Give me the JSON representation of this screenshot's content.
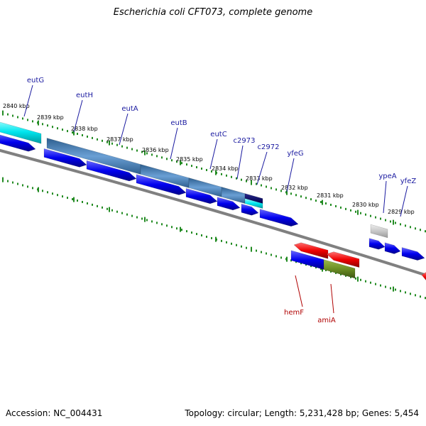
{
  "title": "Escherichia coli CFT073, complete genome",
  "footer": {
    "accession": "Accession: NC_004431",
    "summary": "Topology: circular; Length: 5,231,428 bp; Genes: 5,454"
  },
  "scale_labels": [
    "2840 kbp",
    "2839 kbp",
    "2838 kbp",
    "2837 kbp",
    "2836 kbp",
    "2835 kbp",
    "2834 kbp",
    "2833 kbp",
    "2832 kbp",
    "2831 kbp",
    "2830 kbp",
    "2829 kbp"
  ],
  "gene_labels": [
    {
      "text": "eutG",
      "strand": "forward"
    },
    {
      "text": "eutH",
      "strand": "forward"
    },
    {
      "text": "eutA",
      "strand": "forward"
    },
    {
      "text": "eutB",
      "strand": "forward"
    },
    {
      "text": "eutC",
      "strand": "forward"
    },
    {
      "text": "c2973",
      "strand": "forward"
    },
    {
      "text": "c2972",
      "strand": "forward"
    },
    {
      "text": "yfeG",
      "strand": "forward"
    },
    {
      "text": "ypeA",
      "strand": "forward"
    },
    {
      "text": "yfeZ",
      "strand": "forward"
    },
    {
      "text": "hemF",
      "strand": "reverse"
    },
    {
      "text": "amiA",
      "strand": "reverse"
    }
  ],
  "colors": {
    "forward_cds": "#0000ee",
    "reverse_cds": "#ee0000",
    "forward_label": "#1a1aa0",
    "reverse_label": "#b00000",
    "steelblue_feature": "#4a7fb5",
    "cyan_feature": "#00e5ee",
    "olive_feature": "#6b8e23",
    "grey_feature": "#bdbdbd",
    "backbone": "#808080",
    "ticks": "#228b22"
  }
}
